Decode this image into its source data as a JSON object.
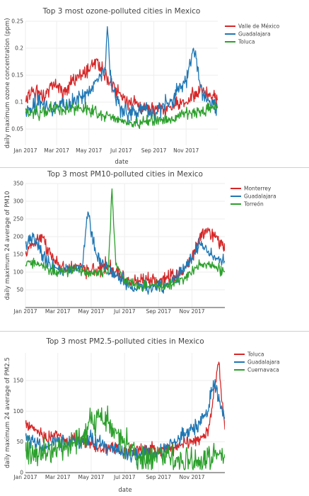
{
  "chart_data": [
    {
      "type": "line",
      "title": "Top 3 most ozone-polluted cities in Mexico",
      "xlabel": "date",
      "ylabel": "daily maximum ozone concentration (ppm)",
      "x_range": [
        "2017-01-01",
        "2017-12-31"
      ],
      "x_ticks": [
        "Jan 2017",
        "Mar 2017",
        "May 2017",
        "Jul 2017",
        "Sep 2017",
        "Nov 2017"
      ],
      "ylim": [
        0.02,
        0.25
      ],
      "y_ticks": [
        "0.05",
        "0.1",
        "0.15",
        "0.2",
        "0.25"
      ],
      "grid": true,
      "legend_position": "top-right",
      "series": [
        {
          "name": "Valle de México",
          "color": "#d62728",
          "x": [
            "2017-01-01",
            "2017-01-15",
            "2017-02-01",
            "2017-02-15",
            "2017-03-01",
            "2017-03-15",
            "2017-04-01",
            "2017-04-15",
            "2017-05-01",
            "2017-05-15",
            "2017-06-01",
            "2017-06-15",
            "2017-07-01",
            "2017-07-15",
            "2017-08-01",
            "2017-08-15",
            "2017-09-01",
            "2017-09-15",
            "2017-10-01",
            "2017-10-15",
            "2017-11-01",
            "2017-11-15",
            "2017-12-01",
            "2017-12-15",
            "2017-12-31"
          ],
          "y": [
            0.1,
            0.12,
            0.11,
            0.125,
            0.13,
            0.12,
            0.14,
            0.15,
            0.16,
            0.18,
            0.15,
            0.13,
            0.11,
            0.1,
            0.095,
            0.09,
            0.085,
            0.09,
            0.09,
            0.095,
            0.1,
            0.11,
            0.12,
            0.11,
            0.105
          ],
          "noise": 0.022
        },
        {
          "name": "Guadalajara",
          "color": "#1f77b4",
          "x": [
            "2017-01-01",
            "2017-01-15",
            "2017-02-01",
            "2017-02-15",
            "2017-03-01",
            "2017-03-15",
            "2017-04-01",
            "2017-04-15",
            "2017-05-01",
            "2017-05-15",
            "2017-06-01",
            "2017-06-05",
            "2017-06-10",
            "2017-06-20",
            "2017-07-01",
            "2017-07-15",
            "2017-08-01",
            "2017-08-15",
            "2017-09-01",
            "2017-09-15",
            "2017-10-01",
            "2017-10-15",
            "2017-11-01",
            "2017-11-15",
            "2017-12-01",
            "2017-12-15",
            "2017-12-31"
          ],
          "y": [
            0.08,
            0.09,
            0.1,
            0.09,
            0.09,
            0.095,
            0.1,
            0.11,
            0.12,
            0.14,
            0.16,
            0.24,
            0.15,
            0.11,
            0.09,
            0.08,
            0.08,
            0.085,
            0.08,
            0.09,
            0.1,
            0.12,
            0.14,
            0.2,
            0.12,
            0.1,
            0.09
          ],
          "noise": 0.025
        },
        {
          "name": "Toluca",
          "color": "#2ca02c",
          "x": [
            "2017-01-01",
            "2017-01-15",
            "2017-02-01",
            "2017-02-15",
            "2017-03-01",
            "2017-03-15",
            "2017-04-01",
            "2017-04-15",
            "2017-05-01",
            "2017-05-15",
            "2017-06-01",
            "2017-06-15",
            "2017-07-01",
            "2017-07-15",
            "2017-08-01",
            "2017-08-15",
            "2017-09-01",
            "2017-09-15",
            "2017-10-01",
            "2017-10-15",
            "2017-11-01",
            "2017-11-15",
            "2017-12-01",
            "2017-12-15",
            "2017-12-31"
          ],
          "y": [
            0.085,
            0.08,
            0.08,
            0.085,
            0.09,
            0.085,
            0.09,
            0.09,
            0.085,
            0.08,
            0.075,
            0.07,
            0.065,
            0.06,
            0.06,
            0.065,
            0.065,
            0.07,
            0.07,
            0.075,
            0.08,
            0.08,
            0.085,
            0.085,
            0.09
          ],
          "noise": 0.018
        }
      ]
    },
    {
      "type": "line",
      "title": "Top 3 most PM10-polluted cities in Mexico",
      "xlabel": "",
      "ylabel": "daily maximum 24 average of PM10",
      "x_range": [
        "2017-01-01",
        "2017-12-31"
      ],
      "x_ticks": [
        "Jan 2017",
        "Mar 2017",
        "May 2017",
        "Jul 2017",
        "Sep 2017",
        "Nov 2017"
      ],
      "ylim": [
        0,
        350
      ],
      "y_ticks": [
        "50",
        "100",
        "150",
        "200",
        "250",
        "300",
        "350"
      ],
      "grid": true,
      "legend_position": "top-right",
      "series": [
        {
          "name": "Monterrey",
          "color": "#d62728",
          "x": [
            "2017-01-01",
            "2017-01-15",
            "2017-02-01",
            "2017-02-15",
            "2017-03-01",
            "2017-03-15",
            "2017-04-01",
            "2017-04-15",
            "2017-05-01",
            "2017-05-15",
            "2017-06-01",
            "2017-06-15",
            "2017-07-01",
            "2017-07-15",
            "2017-08-01",
            "2017-08-15",
            "2017-09-01",
            "2017-09-15",
            "2017-10-01",
            "2017-10-15",
            "2017-11-01",
            "2017-11-15",
            "2017-12-01",
            "2017-12-15",
            "2017-12-31"
          ],
          "y": [
            150,
            180,
            200,
            150,
            120,
            110,
            120,
            110,
            100,
            110,
            120,
            100,
            80,
            75,
            80,
            80,
            75,
            80,
            90,
            100,
            140,
            200,
            220,
            200,
            160
          ],
          "noise": 30
        },
        {
          "name": "Guadalajara",
          "color": "#1f77b4",
          "x": [
            "2017-01-01",
            "2017-01-15",
            "2017-02-01",
            "2017-02-15",
            "2017-03-01",
            "2017-03-15",
            "2017-04-01",
            "2017-04-15",
            "2017-04-25",
            "2017-05-10",
            "2017-06-01",
            "2017-06-15",
            "2017-07-01",
            "2017-07-15",
            "2017-08-01",
            "2017-08-15",
            "2017-09-01",
            "2017-09-15",
            "2017-10-01",
            "2017-10-15",
            "2017-11-01",
            "2017-11-15",
            "2017-12-01",
            "2017-12-15",
            "2017-12-31"
          ],
          "y": [
            180,
            200,
            150,
            120,
            110,
            100,
            110,
            120,
            270,
            150,
            100,
            90,
            70,
            60,
            60,
            60,
            55,
            60,
            80,
            100,
            140,
            180,
            160,
            140,
            130
          ],
          "noise": 28
        },
        {
          "name": "Torreón",
          "color": "#2ca02c",
          "x": [
            "2017-01-01",
            "2017-01-15",
            "2017-02-01",
            "2017-02-15",
            "2017-03-01",
            "2017-03-15",
            "2017-04-01",
            "2017-04-15",
            "2017-05-01",
            "2017-05-15",
            "2017-06-01",
            "2017-06-08",
            "2017-06-15",
            "2017-07-01",
            "2017-07-15",
            "2017-08-01",
            "2017-08-15",
            "2017-09-01",
            "2017-09-15",
            "2017-10-01",
            "2017-10-15",
            "2017-11-01",
            "2017-11-15",
            "2017-12-01",
            "2017-12-15",
            "2017-12-31"
          ],
          "y": [
            120,
            130,
            120,
            110,
            100,
            100,
            110,
            100,
            100,
            100,
            100,
            335,
            120,
            80,
            70,
            60,
            60,
            60,
            60,
            70,
            80,
            100,
            120,
            120,
            110,
            100
          ],
          "noise": 22
        }
      ]
    },
    {
      "type": "line",
      "title": "Top 3 most PM2.5-polluted cities in Mexico",
      "xlabel": "date",
      "ylabel": "daily maximum 24 average of PM2.5",
      "x_range": [
        "2017-01-01",
        "2017-12-31"
      ],
      "x_ticks": [
        "Jan 2017",
        "Mar 2017",
        "May 2017",
        "Jul 2017",
        "Sep 2017",
        "Nov 2017"
      ],
      "ylim": [
        0,
        195
      ],
      "y_ticks": [
        "0",
        "50",
        "100",
        "150"
      ],
      "grid": true,
      "legend_position": "top-right",
      "series": [
        {
          "name": "Toluca",
          "color": "#d62728",
          "x": [
            "2017-01-01",
            "2017-01-15",
            "2017-02-01",
            "2017-02-15",
            "2017-03-01",
            "2017-03-15",
            "2017-04-01",
            "2017-04-15",
            "2017-05-01",
            "2017-05-15",
            "2017-06-01",
            "2017-06-15",
            "2017-07-01",
            "2017-07-15",
            "2017-08-01",
            "2017-08-15",
            "2017-09-01",
            "2017-09-15",
            "2017-10-01",
            "2017-10-15",
            "2017-11-01",
            "2017-11-15",
            "2017-12-01",
            "2017-12-20",
            "2017-12-31"
          ],
          "y": [
            80,
            75,
            60,
            55,
            60,
            50,
            55,
            50,
            45,
            40,
            40,
            40,
            35,
            35,
            35,
            40,
            35,
            40,
            40,
            45,
            50,
            55,
            70,
            180,
            70
          ],
          "noise": 15
        },
        {
          "name": "Guadalajara",
          "color": "#1f77b4",
          "x": [
            "2017-01-01",
            "2017-01-15",
            "2017-02-01",
            "2017-02-15",
            "2017-03-01",
            "2017-03-15",
            "2017-04-01",
            "2017-04-15",
            "2017-05-01",
            "2017-05-15",
            "2017-06-01",
            "2017-06-15",
            "2017-07-01",
            "2017-07-15",
            "2017-08-01",
            "2017-08-15",
            "2017-09-01",
            "2017-09-15",
            "2017-10-01",
            "2017-10-15",
            "2017-11-01",
            "2017-11-15",
            "2017-12-01",
            "2017-12-10",
            "2017-12-31"
          ],
          "y": [
            60,
            50,
            45,
            45,
            50,
            45,
            50,
            50,
            55,
            50,
            40,
            35,
            30,
            30,
            30,
            30,
            30,
            40,
            50,
            60,
            70,
            80,
            100,
            150,
            90
          ],
          "noise": 20
        },
        {
          "name": "Cuernavaca",
          "color": "#2ca02c",
          "x": [
            "2017-01-01",
            "2017-01-15",
            "2017-02-01",
            "2017-02-15",
            "2017-03-01",
            "2017-03-15",
            "2017-04-01",
            "2017-04-15",
            "2017-05-01",
            "2017-05-15",
            "2017-06-01",
            "2017-06-15",
            "2017-07-01",
            "2017-07-15",
            "2017-08-01",
            "2017-08-15",
            "2017-09-01",
            "2017-09-15",
            "2017-10-01",
            "2017-10-15",
            "2017-11-01",
            "2017-11-15",
            "2017-12-01",
            "2017-12-15",
            "2017-12-31"
          ],
          "y": [
            35,
            30,
            30,
            35,
            40,
            45,
            50,
            60,
            80,
            90,
            80,
            70,
            50,
            40,
            25,
            20,
            30,
            25,
            20,
            20,
            20,
            20,
            25,
            30,
            30
          ],
          "noise": 35
        }
      ]
    }
  ]
}
